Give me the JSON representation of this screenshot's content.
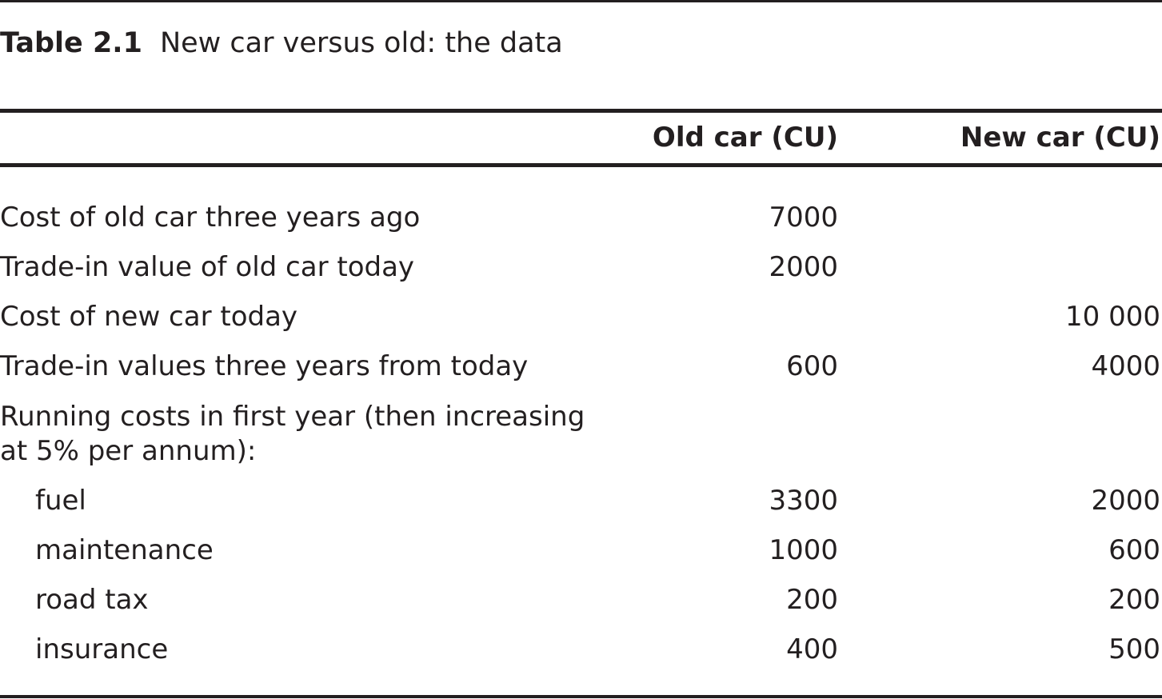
{
  "caption": {
    "label": "Table 2.1",
    "title": "New car versus old: the data"
  },
  "columns": {
    "old": "Old car (CU)",
    "new": "New car (CU)"
  },
  "rows": [
    {
      "label": "Cost of old car three years ago",
      "old": "7000",
      "new": ""
    },
    {
      "label": "Trade-in value of old car today",
      "old": "2000",
      "new": ""
    },
    {
      "label": "Cost of new car today",
      "old": "",
      "new": "10 000"
    },
    {
      "label": "Trade-in values three years from today",
      "old": "600",
      "new": "4000"
    },
    {
      "label": "Running costs in first year (then increasing",
      "old": "",
      "new": ""
    },
    {
      "label": "at 5% per annum):",
      "old": "",
      "new": ""
    },
    {
      "label": "fuel",
      "old": "3300",
      "new": "2000"
    },
    {
      "label": "maintenance",
      "old": "1000",
      "new": "600"
    },
    {
      "label": "road tax",
      "old": "200",
      "new": "200"
    },
    {
      "label": "insurance",
      "old": "400",
      "new": "500"
    }
  ]
}
